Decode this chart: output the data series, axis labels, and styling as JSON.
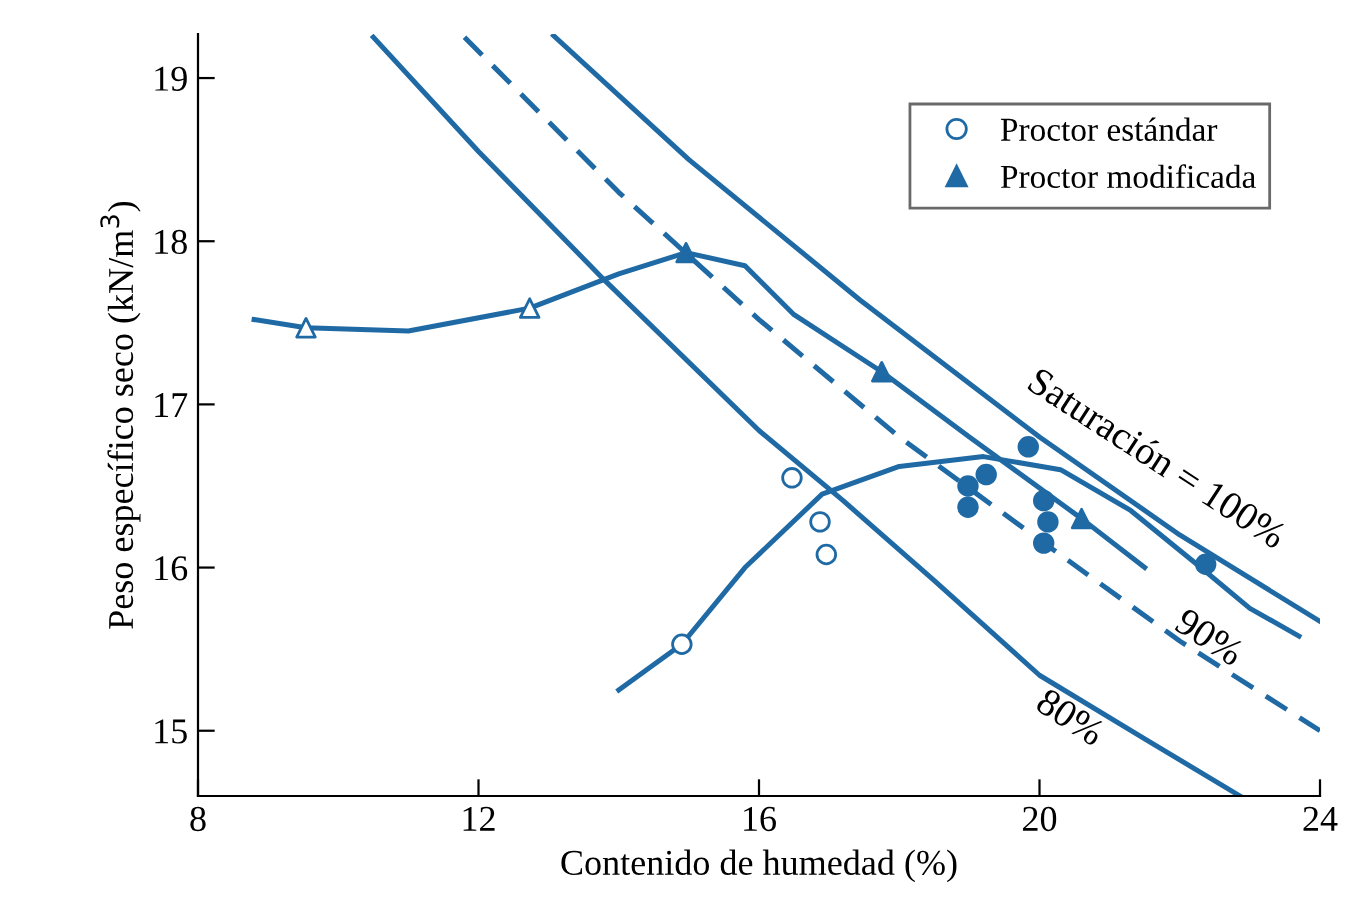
{
  "chart_data": {
    "type": "line",
    "xlabel": "Contenido de humedad (%)",
    "ylabel": "Peso específico seco (kN/m$^{3}$)",
    "xlim": [
      8,
      24
    ],
    "ylim": [
      14.6,
      19.27
    ],
    "xticks": [
      8,
      12,
      16,
      20,
      24
    ],
    "yticks": [
      15,
      16,
      17,
      18,
      19
    ],
    "grid": false,
    "legend": "top right",
    "series": [
      {
        "color": "#1f6aa5",
        "x": [
          13.07,
          15,
          17.44,
          20,
          22,
          24
        ],
        "values": [
          19.26,
          18.5,
          17.64,
          16.8,
          16.2,
          15.67
        ]
      },
      {
        "color": "#1f6aa5",
        "line_style": "dashed",
        "x": [
          11.8,
          14,
          16,
          18,
          20,
          22,
          24
        ],
        "values": [
          19.25,
          18.3,
          17.52,
          16.8,
          16.17,
          15.55,
          15.0
        ]
      },
      {
        "color": "#1f6aa5",
        "x": [
          10.5,
          12,
          13.8,
          16,
          17.2,
          18.5,
          20,
          21.5,
          22.86
        ],
        "values": [
          19.25,
          18.55,
          17.76,
          16.84,
          16.41,
          15.92,
          15.34,
          14.95,
          14.6
        ]
      },
      {
        "color": "#1f6aa5",
        "x": [
          14,
          14.9,
          15.8,
          16.9,
          18,
          19.2,
          20.3,
          21.3,
          22.3,
          23,
          23.7
        ],
        "values": [
          15.25,
          15.53,
          16.0,
          16.45,
          16.62,
          16.68,
          16.6,
          16.35,
          16.0,
          15.75,
          15.58
        ]
      },
      {
        "color": "#1f6aa5",
        "x": [
          8.8,
          9.54,
          11,
          12.73,
          14,
          14.96,
          15.8,
          16.5,
          17.75,
          19,
          20.6,
          21.5
        ],
        "values": [
          17.52,
          17.47,
          17.45,
          17.59,
          17.8,
          17.93,
          17.85,
          17.55,
          17.2,
          16.8,
          16.3,
          16.0
        ]
      },
      {
        "type": "scatter",
        "name": "Proctor estándar",
        "color": "#1f6aa5",
        "marker": "circle",
        "colors": [
          "#ffffff",
          "#ffffff",
          "#ffffff",
          "#ffffff"
        ],
        "x": [
          14.9,
          16.47,
          16.87,
          16.96
        ],
        "values": [
          15.53,
          16.55,
          16.28,
          16.08
        ]
      },
      {
        "type": "scatter",
        "name": "Proctor modificada",
        "color": "#1f6aa5",
        "marker": "triangle",
        "x": [
          14.96,
          17.75,
          20.6
        ],
        "values": [
          17.93,
          17.2,
          16.3
        ]
      },
      {
        "type": "scatter",
        "color": "#1f6aa5",
        "marker": "triangle",
        "colors": [
          "#ffffff",
          "#ffffff"
        ],
        "x": [
          9.54,
          12.73
        ],
        "values": [
          17.47,
          17.59
        ]
      },
      {
        "type": "scatter",
        "color": "#1f6aa5",
        "marker": "circle",
        "x": [
          19.84,
          19.24,
          18.98,
          18.98,
          20.06,
          20.12,
          20.06,
          22.37
        ],
        "values": [
          16.74,
          16.57,
          16.5,
          16.37,
          16.41,
          16.28,
          16.15,
          16.02
        ]
      }
    ],
    "annotations": [
      "Saturación = 100%",
      "90%",
      "80%"
    ]
  }
}
